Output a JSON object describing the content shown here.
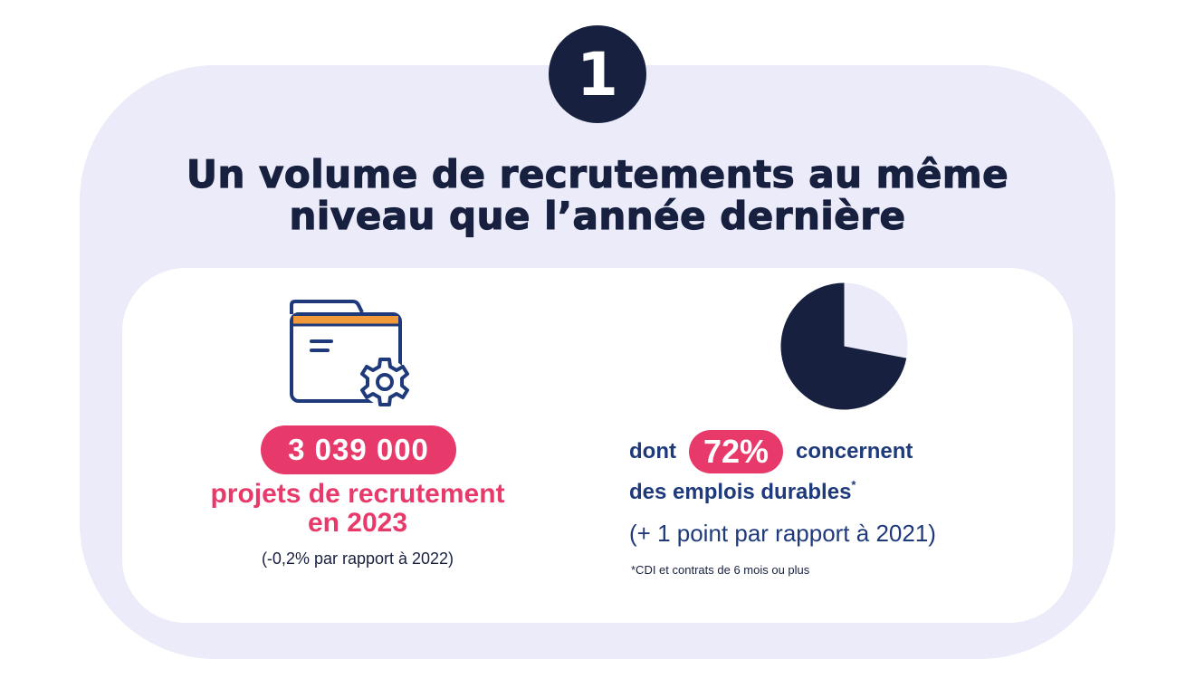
{
  "badge": {
    "number": "1"
  },
  "title": {
    "line1": "Un volume de recrutements au même",
    "line2": "niveau que l’année dernière"
  },
  "left_stat": {
    "icon": "folder-gear-icon",
    "value": "3 039 000",
    "label_line1": "projets de recrutement",
    "label_line2": "en 2023",
    "note": "(-0,2% par rapport à 2022)"
  },
  "right_stat": {
    "icon": "pie-chart-icon",
    "pie_share": 0.72,
    "prefix": "dont",
    "percent": "72%",
    "suffix": "concernent",
    "line2": "des emplois durables",
    "asterisk": "*",
    "line3": "(+ 1 point par rapport à 2021)",
    "footnote": "*CDI et contrats de 6 mois ou plus"
  },
  "colors": {
    "navy": "#17213f",
    "pink": "#e83a6a",
    "blue_text": "#1f3a7a",
    "lavender": "#ebebfa",
    "orange": "#f29a3a"
  }
}
